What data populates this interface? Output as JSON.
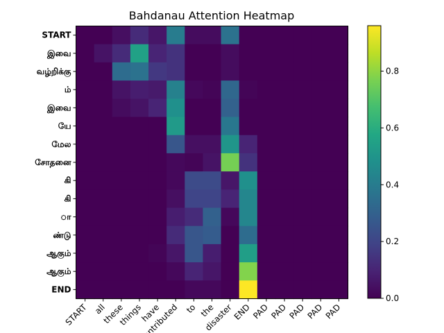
{
  "chart_data": {
    "type": "heatmap",
    "title": "Bahdanau Attention Heatmap",
    "x_labels": [
      "START",
      "all",
      "these",
      "things",
      "have",
      "contributed",
      "to",
      "the",
      "disaster",
      "END",
      "PAD",
      "PAD",
      "PAD",
      "PAD",
      "PAD"
    ],
    "y_labels": [
      "START",
      "இவை",
      "வழ்றிக்கு",
      "ம்",
      "இவை",
      "யே",
      "மேல",
      "சோதனை",
      "கி",
      "கி",
      "ா",
      "ண்டு",
      "ஆகும்",
      "ஆகும்",
      "END"
    ],
    "values": [
      [
        0.0,
        0.0,
        0.04,
        0.12,
        0.06,
        0.4,
        0.03,
        0.03,
        0.36,
        0.0,
        0.0,
        0.0,
        0.0,
        0.0,
        0.0
      ],
      [
        0.0,
        0.05,
        0.12,
        0.55,
        0.1,
        0.14,
        0.0,
        0.0,
        0.03,
        0.0,
        0.0,
        0.0,
        0.0,
        0.0,
        0.0
      ],
      [
        0.0,
        0.0,
        0.34,
        0.36,
        0.16,
        0.14,
        0.0,
        0.0,
        0.03,
        0.0,
        0.0,
        0.0,
        0.0,
        0.0,
        0.0
      ],
      [
        0.0,
        0.0,
        0.05,
        0.08,
        0.07,
        0.42,
        0.02,
        0.01,
        0.32,
        0.01,
        0.0,
        0.0,
        0.0,
        0.0,
        0.0
      ],
      [
        0.0,
        0.0,
        0.03,
        0.05,
        0.1,
        0.48,
        0.0,
        0.0,
        0.3,
        0.0,
        0.0,
        0.0,
        0.0,
        0.0,
        0.0
      ],
      [
        0.0,
        0.0,
        0.0,
        0.0,
        0.0,
        0.52,
        0.0,
        0.0,
        0.38,
        0.0,
        0.0,
        0.0,
        0.0,
        0.0,
        0.0
      ],
      [
        0.0,
        0.0,
        0.0,
        0.0,
        0.0,
        0.26,
        0.04,
        0.04,
        0.5,
        0.1,
        0.0,
        0.0,
        0.0,
        0.0,
        0.0
      ],
      [
        0.0,
        0.0,
        0.0,
        0.0,
        0.0,
        0.02,
        0.01,
        0.05,
        0.76,
        0.14,
        0.0,
        0.0,
        0.0,
        0.0,
        0.0
      ],
      [
        0.0,
        0.0,
        0.0,
        0.0,
        0.0,
        0.02,
        0.22,
        0.22,
        0.06,
        0.48,
        0.0,
        0.0,
        0.0,
        0.0,
        0.0
      ],
      [
        0.0,
        0.0,
        0.0,
        0.0,
        0.0,
        0.04,
        0.2,
        0.2,
        0.1,
        0.44,
        0.0,
        0.0,
        0.0,
        0.0,
        0.0
      ],
      [
        0.0,
        0.0,
        0.0,
        0.0,
        0.0,
        0.08,
        0.12,
        0.3,
        0.02,
        0.44,
        0.0,
        0.0,
        0.0,
        0.0,
        0.0
      ],
      [
        0.0,
        0.0,
        0.0,
        0.0,
        0.0,
        0.12,
        0.26,
        0.28,
        0.0,
        0.34,
        0.0,
        0.0,
        0.0,
        0.0,
        0.0
      ],
      [
        0.0,
        0.0,
        0.0,
        0.0,
        0.01,
        0.06,
        0.26,
        0.08,
        0.0,
        0.54,
        0.0,
        0.0,
        0.0,
        0.0,
        0.0
      ],
      [
        0.0,
        0.0,
        0.0,
        0.0,
        0.0,
        0.02,
        0.1,
        0.06,
        0.0,
        0.78,
        0.0,
        0.0,
        0.0,
        0.0,
        0.0
      ],
      [
        0.0,
        0.0,
        0.0,
        0.0,
        0.0,
        0.0,
        0.02,
        0.02,
        0.0,
        0.96,
        0.0,
        0.0,
        0.0,
        0.0,
        0.0
      ]
    ],
    "colormap": "viridis",
    "vmin": 0.0,
    "vmax": 0.96,
    "colorbar_ticks": [
      "0.0",
      "0.2",
      "0.4",
      "0.6",
      "0.8"
    ],
    "colorbar_tick_values": [
      0.0,
      0.2,
      0.4,
      0.6,
      0.8
    ],
    "xlabel": "",
    "ylabel": "",
    "grid": false,
    "legend": "colorbar-right"
  }
}
